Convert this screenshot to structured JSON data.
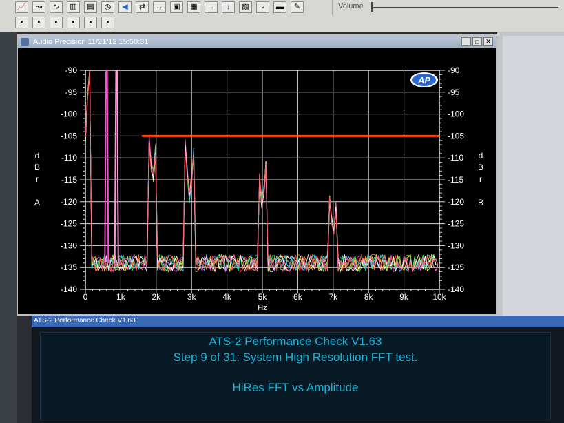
{
  "toolbar": {
    "row1_icons": [
      "graph-icon",
      "sweep-icon",
      "signal-icon",
      "analyzer-icon",
      "meter-icon",
      "timer-icon",
      "speaker-icon",
      "link-icon",
      "arrows-icon",
      "folder-icon",
      "page-icon",
      "go-icon",
      "download-icon",
      "image-icon",
      "blank-icon",
      "bar-icon",
      "edit-icon"
    ],
    "row2_icons": [
      "panel-icon-1",
      "panel-icon-2",
      "panel-icon-3",
      "panel-icon-4",
      "panel-icon-5",
      "panel-icon-6"
    ],
    "volume_label": "Volume"
  },
  "window": {
    "title": "Audio Precision  11/21/12 15:50:31",
    "logo": "AP"
  },
  "status_bar": {
    "title": "ATS-2 Performance Check V1.63"
  },
  "message_panel": {
    "line1": "ATS-2 Performance Check V1.63",
    "line2": "Step 9 of 31: System High Resolution FFT test.",
    "line3": "HiRes FFT vs Amplitude"
  },
  "chart_data": {
    "type": "line",
    "xlabel": "Hz",
    "ylabel_left": [
      "d",
      "B",
      "r",
      "",
      "A"
    ],
    "ylabel_right": [
      "d",
      "B",
      "r",
      "",
      "B"
    ],
    "xlim": [
      0,
      10000
    ],
    "ylim": [
      -140,
      -90
    ],
    "grid": true,
    "x_ticks": [
      0,
      1000,
      2000,
      3000,
      4000,
      5000,
      6000,
      7000,
      8000,
      9000,
      10000
    ],
    "x_tick_labels": [
      "0",
      "1k",
      "2k",
      "3k",
      "4k",
      "5k",
      "6k",
      "7k",
      "8k",
      "9k",
      "10k"
    ],
    "y_ticks": [
      -90,
      -95,
      -100,
      -105,
      -110,
      -115,
      -120,
      -125,
      -130,
      -135,
      -140
    ],
    "y_tick_labels": [
      "-90",
      "-95",
      "-100",
      "-105",
      "-110",
      "-115",
      "-120",
      "-125",
      "-130",
      "-135",
      "-140"
    ],
    "limit_line": {
      "y": -105,
      "x_start": 1600,
      "x_end": 10200,
      "color": "#ff4a14"
    },
    "noise_floor": -134,
    "spikes": [
      {
        "x": 0,
        "y": -106
      },
      {
        "x": 1900,
        "y": -116
      },
      {
        "x": 2950,
        "y": -120
      },
      {
        "x": 5000,
        "y": -122
      },
      {
        "x": 7000,
        "y": -129
      }
    ],
    "fundamentals": [
      {
        "x": 600,
        "y": -90,
        "color": "#ff4fd6"
      },
      {
        "x": 880,
        "y": -90,
        "color": "#ff9ad8"
      }
    ],
    "series_colors": [
      "#ffff3a",
      "#ff9a2a",
      "#36ff6a",
      "#3ad6ff",
      "#ff5ad8",
      "#ffffff",
      "#ff5050"
    ]
  }
}
